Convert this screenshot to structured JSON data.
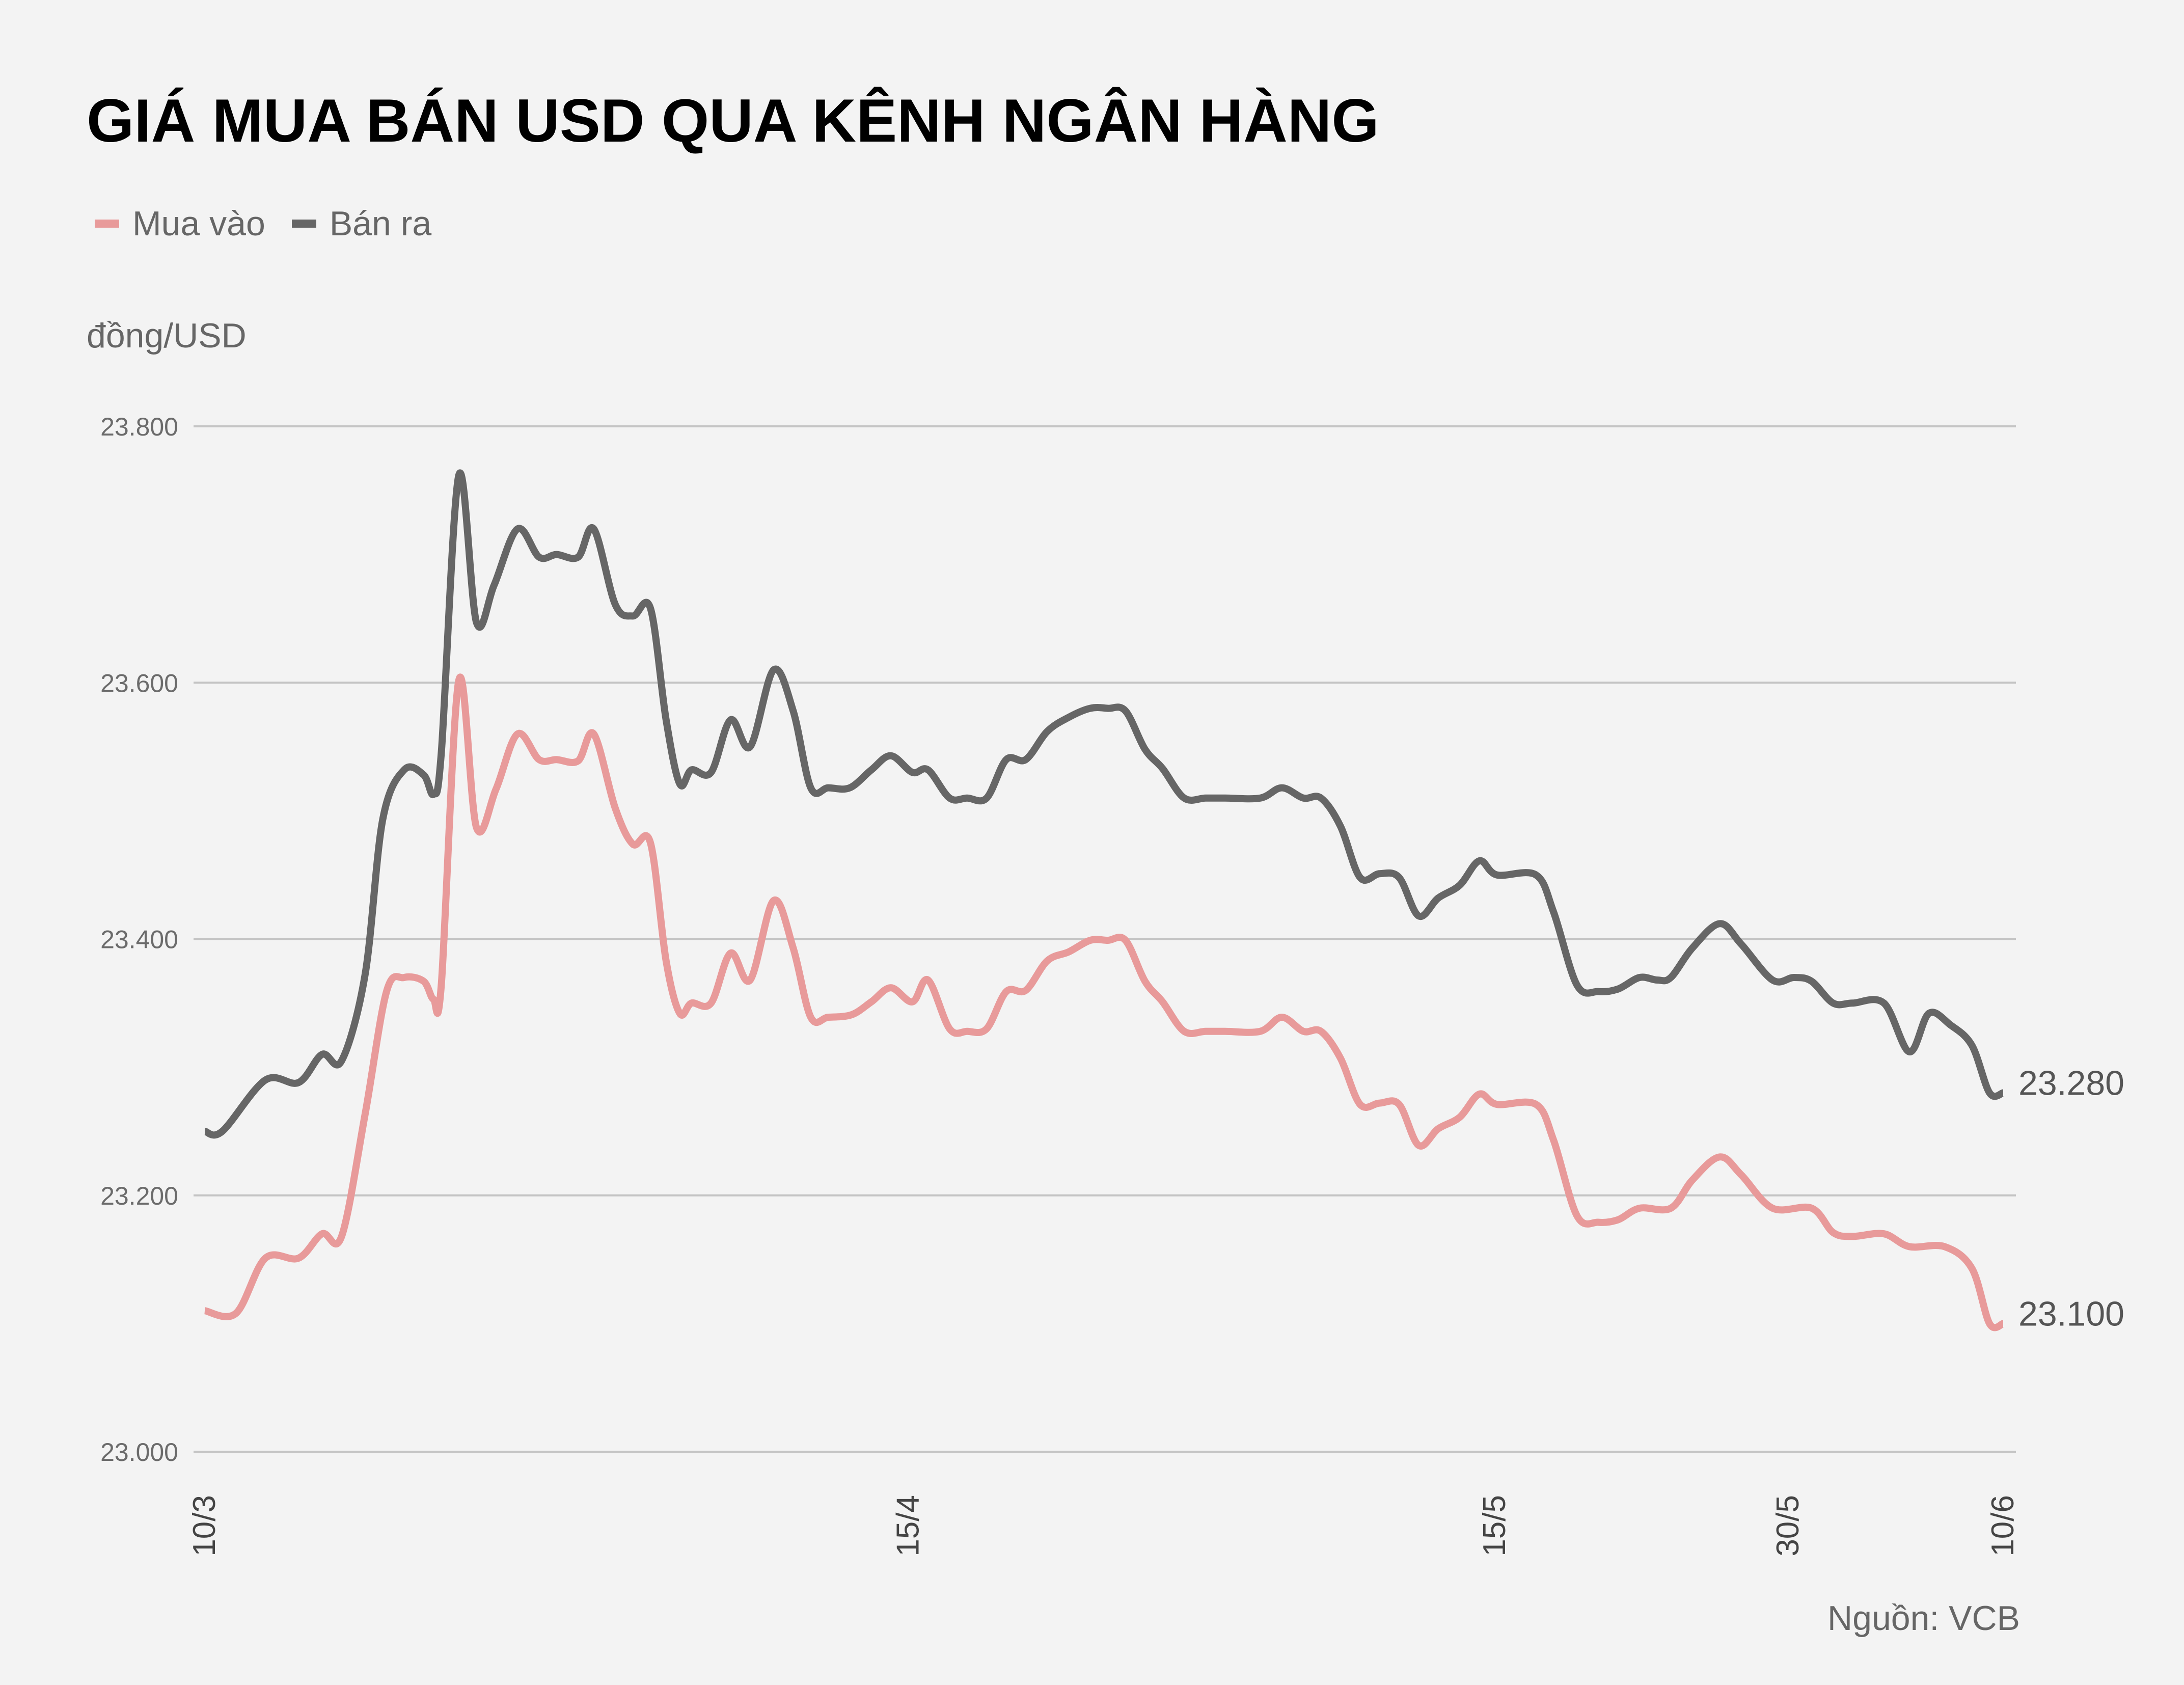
{
  "title": "GIÁ MUA BÁN USD QUA KÊNH NGÂN HÀNG",
  "legend": [
    {
      "label": "Mua vào",
      "color": "#e89a9a"
    },
    {
      "label": "Bán ra",
      "color": "#666666"
    }
  ],
  "unit_label": "đồng/USD",
  "source": "Nguồn: VCB",
  "colors": {
    "background": "#f3f3f3",
    "grid": "#c4c4c4",
    "buy": "#e89a9a",
    "sell": "#666666",
    "title": "#000000"
  },
  "chart_data": {
    "type": "line",
    "title": "GIÁ MUA BÁN USD QUA KÊNH NGÂN HÀNG",
    "xlabel": "",
    "ylabel": "đồng/USD",
    "ylim": [
      23000,
      23800
    ],
    "yticks": [
      23000,
      23200,
      23400,
      23600,
      23800
    ],
    "ytick_labels": [
      "23.000",
      "23.200",
      "23.400",
      "23.600",
      "23.800"
    ],
    "xticks": [
      {
        "label": "10/3",
        "day": 0
      },
      {
        "label": "15/4",
        "day": 36
      },
      {
        "label": "15/5",
        "day": 66
      },
      {
        "label": "30/5",
        "day": 81
      },
      {
        "label": "10/6",
        "day": 92
      }
    ],
    "x_range_days": [
      0,
      92
    ],
    "grid": true,
    "legend_position": "top-left",
    "end_labels": [
      {
        "series": "Bán ra",
        "text": "23.280"
      },
      {
        "series": "Mua vào",
        "text": "23.100"
      }
    ],
    "series": [
      {
        "name": "Mua vào",
        "color": "#e89a9a",
        "points": [
          [
            0,
            23110
          ],
          [
            1.6,
            23108
          ],
          [
            3.1,
            23151
          ],
          [
            4.8,
            23151
          ],
          [
            6.0,
            23170
          ],
          [
            7.0,
            23168
          ],
          [
            8.2,
            23263
          ],
          [
            9.3,
            23359
          ],
          [
            10.2,
            23370
          ],
          [
            11.2,
            23367
          ],
          [
            11.7,
            23353
          ],
          [
            12.1,
            23364
          ],
          [
            13.0,
            23602
          ],
          [
            13.9,
            23487
          ],
          [
            14.9,
            23517
          ],
          [
            16.0,
            23560
          ],
          [
            17.1,
            23540
          ],
          [
            18.0,
            23540
          ],
          [
            19.1,
            23539
          ],
          [
            19.9,
            23560
          ],
          [
            21.0,
            23502
          ],
          [
            21.9,
            23474
          ],
          [
            22.8,
            23475
          ],
          [
            23.6,
            23383
          ],
          [
            24.3,
            23342
          ],
          [
            24.9,
            23350
          ],
          [
            25.9,
            23350
          ],
          [
            26.9,
            23389
          ],
          [
            27.9,
            23368
          ],
          [
            29.1,
            23430
          ],
          [
            30.1,
            23393
          ],
          [
            31.0,
            23339
          ],
          [
            31.9,
            23339
          ],
          [
            33.1,
            23341
          ],
          [
            34.1,
            23351
          ],
          [
            35.1,
            23362
          ],
          [
            36.2,
            23351
          ],
          [
            37.0,
            23368
          ],
          [
            38.1,
            23330
          ],
          [
            39.0,
            23328
          ],
          [
            40.0,
            23330
          ],
          [
            41.0,
            23359
          ],
          [
            42.0,
            23360
          ],
          [
            43.1,
            23383
          ],
          [
            44.2,
            23390
          ],
          [
            45.3,
            23399
          ],
          [
            46.2,
            23399
          ],
          [
            47.1,
            23399
          ],
          [
            48.1,
            23367
          ],
          [
            49.0,
            23351
          ],
          [
            50.1,
            23328
          ],
          [
            51.2,
            23328
          ],
          [
            52.2,
            23328
          ],
          [
            54.0,
            23328
          ],
          [
            55.1,
            23339
          ],
          [
            56.2,
            23328
          ],
          [
            57.1,
            23328
          ],
          [
            58.1,
            23307
          ],
          [
            59.1,
            23271
          ],
          [
            60.1,
            23272
          ],
          [
            61.1,
            23271
          ],
          [
            62.1,
            23239
          ],
          [
            63.1,
            23252
          ],
          [
            64.2,
            23261
          ],
          [
            65.2,
            23279
          ],
          [
            66.1,
            23271
          ],
          [
            68.1,
            23271
          ],
          [
            69.0,
            23243
          ],
          [
            70.2,
            23184
          ],
          [
            71.3,
            23179
          ],
          [
            72.3,
            23181
          ],
          [
            73.4,
            23190
          ],
          [
            75.0,
            23190
          ],
          [
            76.1,
            23212
          ],
          [
            77.5,
            23230
          ],
          [
            78.6,
            23216
          ],
          [
            80.2,
            23190
          ],
          [
            82.2,
            23190
          ],
          [
            83.3,
            23171
          ],
          [
            84.3,
            23168
          ],
          [
            85.9,
            23170
          ],
          [
            87.2,
            23160
          ],
          [
            89.0,
            23160
          ],
          [
            90.4,
            23143
          ],
          [
            91.3,
            23100
          ],
          [
            92,
            23100
          ]
        ]
      },
      {
        "name": "Bán ra",
        "color": "#666666",
        "points": [
          [
            0,
            23250
          ],
          [
            0.9,
            23250
          ],
          [
            3.1,
            23290
          ],
          [
            4.8,
            23288
          ],
          [
            6.0,
            23310
          ],
          [
            7.0,
            23305
          ],
          [
            8.2,
            23372
          ],
          [
            9.1,
            23493
          ],
          [
            10.2,
            23532
          ],
          [
            11.2,
            23528
          ],
          [
            11.7,
            23513
          ],
          [
            12.1,
            23545
          ],
          [
            13.0,
            23762
          ],
          [
            13.9,
            23647
          ],
          [
            14.8,
            23676
          ],
          [
            16.0,
            23720
          ],
          [
            17.1,
            23698
          ],
          [
            18.0,
            23700
          ],
          [
            19.1,
            23698
          ],
          [
            19.9,
            23720
          ],
          [
            21.0,
            23661
          ],
          [
            21.9,
            23652
          ],
          [
            22.8,
            23658
          ],
          [
            23.6,
            23571
          ],
          [
            24.3,
            23521
          ],
          [
            24.9,
            23532
          ],
          [
            25.9,
            23530
          ],
          [
            26.9,
            23571
          ],
          [
            27.9,
            23550
          ],
          [
            29.1,
            23610
          ],
          [
            30.1,
            23578
          ],
          [
            31.0,
            23518
          ],
          [
            31.9,
            23518
          ],
          [
            33.0,
            23518
          ],
          [
            34.1,
            23532
          ],
          [
            35.1,
            23543
          ],
          [
            36.2,
            23530
          ],
          [
            37.0,
            23532
          ],
          [
            38.1,
            23510
          ],
          [
            39.0,
            23510
          ],
          [
            40.0,
            23510
          ],
          [
            41.0,
            23540
          ],
          [
            42.0,
            23540
          ],
          [
            43.1,
            23562
          ],
          [
            44.2,
            23573
          ],
          [
            45.3,
            23580
          ],
          [
            46.2,
            23580
          ],
          [
            47.1,
            23578
          ],
          [
            48.1,
            23548
          ],
          [
            49.0,
            23533
          ],
          [
            50.1,
            23510
          ],
          [
            51.2,
            23510
          ],
          [
            52.2,
            23510
          ],
          [
            54.0,
            23510
          ],
          [
            55.1,
            23518
          ],
          [
            56.2,
            23510
          ],
          [
            57.1,
            23510
          ],
          [
            58.1,
            23488
          ],
          [
            59.1,
            23448
          ],
          [
            60.1,
            23451
          ],
          [
            61.1,
            23448
          ],
          [
            62.1,
            23418
          ],
          [
            63.1,
            23432
          ],
          [
            64.2,
            23442
          ],
          [
            65.2,
            23461
          ],
          [
            66.1,
            23450
          ],
          [
            68.1,
            23450
          ],
          [
            69.0,
            23421
          ],
          [
            70.2,
            23364
          ],
          [
            71.3,
            23359
          ],
          [
            72.3,
            23361
          ],
          [
            73.4,
            23370
          ],
          [
            74.3,
            23368
          ],
          [
            75.0,
            23370
          ],
          [
            76.1,
            23393
          ],
          [
            77.5,
            23412
          ],
          [
            78.6,
            23396
          ],
          [
            80.2,
            23368
          ],
          [
            81.3,
            23370
          ],
          [
            82.2,
            23367
          ],
          [
            83.3,
            23350
          ],
          [
            84.3,
            23350
          ],
          [
            85.9,
            23350
          ],
          [
            87.2,
            23312
          ],
          [
            88.2,
            23342
          ],
          [
            89.3,
            23333
          ],
          [
            90.4,
            23317
          ],
          [
            91.3,
            23280
          ],
          [
            92,
            23280
          ]
        ]
      }
    ]
  }
}
